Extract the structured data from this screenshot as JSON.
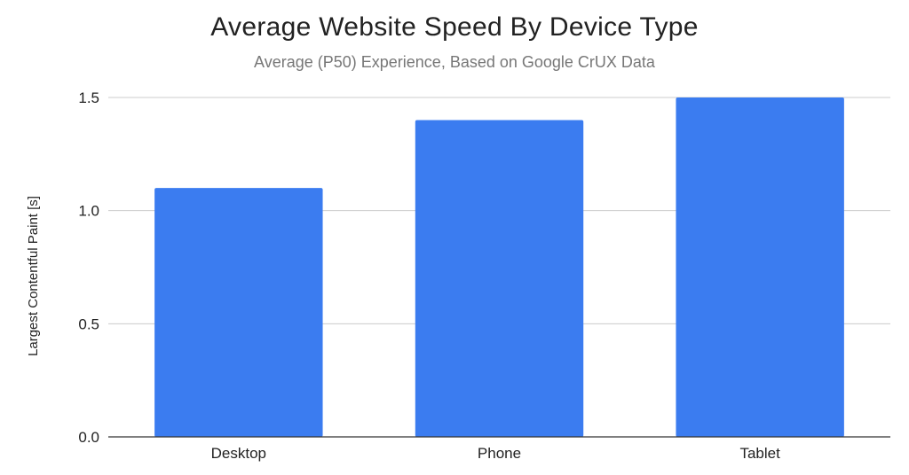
{
  "chart_data": {
    "type": "bar",
    "title": "Average Website Speed By Device Type",
    "subtitle": "Average (P50) Experience, Based on Google CrUX Data",
    "xlabel": "",
    "ylabel": "Largest Contentful Paint [s]",
    "categories": [
      "Desktop",
      "Phone",
      "Tablet"
    ],
    "series": [
      {
        "values": [
          1.1,
          1.4,
          1.5
        ]
      }
    ],
    "ylim": [
      0,
      1.5
    ],
    "yticks": [
      "0.0",
      "0.5",
      "1.0",
      "1.5"
    ],
    "grid": true,
    "legend": "none",
    "bar_color": "#3b7cf0",
    "grid_color": "#cccccc",
    "axis_color": "#333333"
  }
}
